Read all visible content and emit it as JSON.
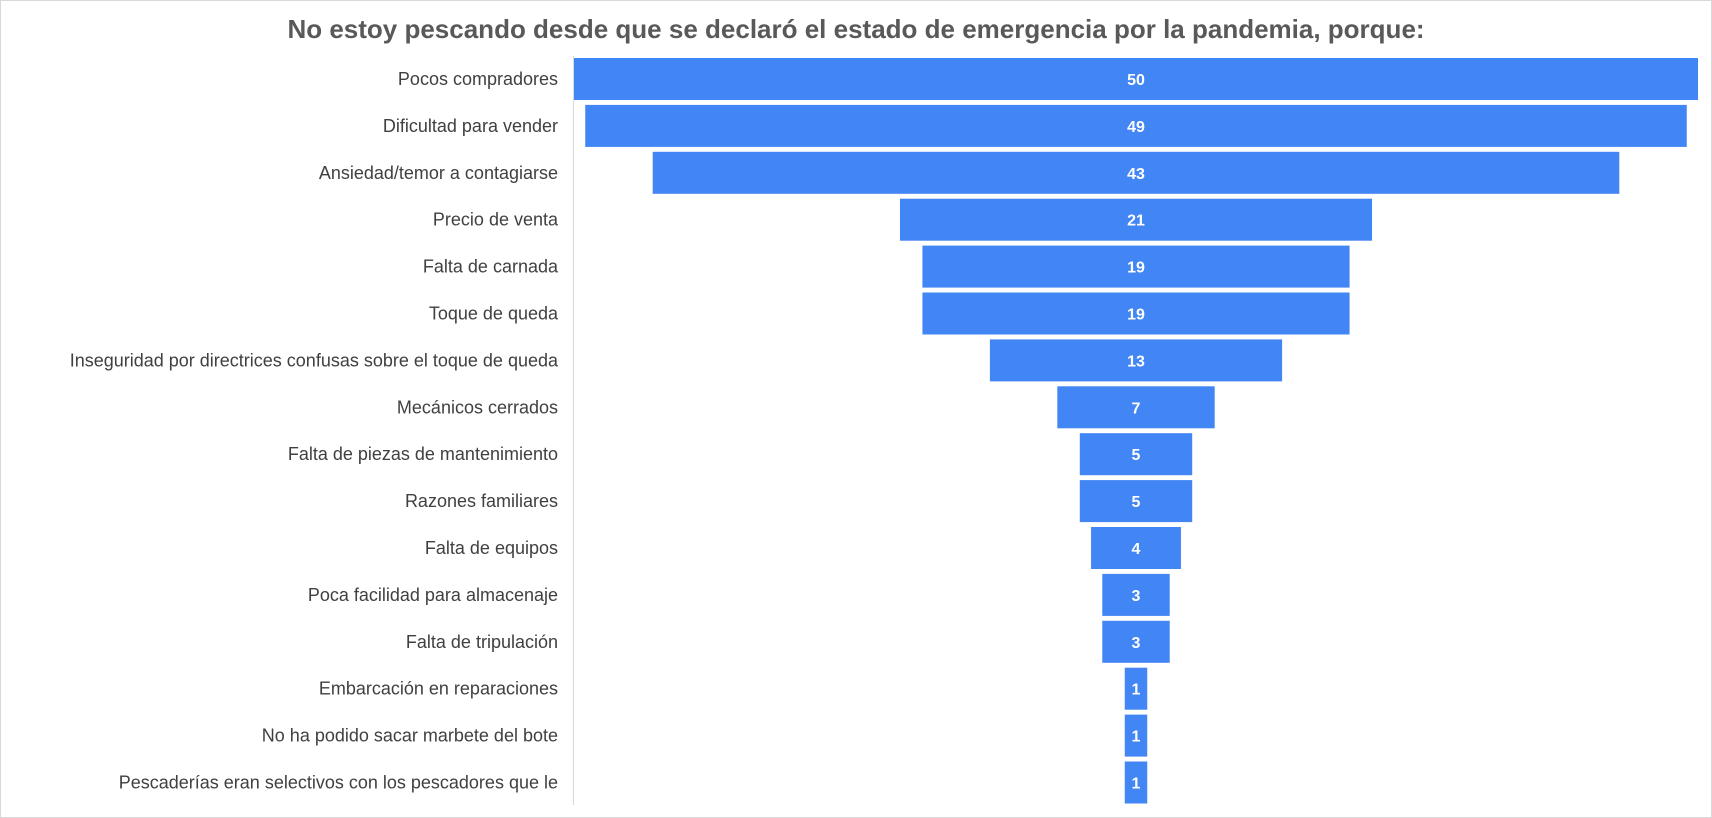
{
  "chart_data": {
    "type": "bar",
    "subtype": "funnel",
    "title": "No estoy pescando desde que se declaró el estado de emergencia por la pandemia, porque:",
    "categories": [
      "Pocos compradores",
      "Dificultad para vender",
      "Ansiedad/temor a contagiarse",
      "Precio de venta",
      "Falta de carnada",
      "Toque de queda",
      "Inseguridad por directrices confusas sobre el toque de queda",
      "Mecánicos cerrados",
      "Falta de piezas de mantenimiento",
      "Razones familiares",
      "Falta de equipos",
      "Poca facilidad para almacenaje",
      "Falta de tripulación",
      "Embarcación en reparaciones",
      "No ha podido sacar marbete del bote",
      "Pescaderías eran selectivos con los pescadores que le"
    ],
    "values": [
      50,
      49,
      43,
      21,
      19,
      19,
      13,
      7,
      5,
      5,
      4,
      3,
      3,
      1,
      1,
      1
    ],
    "bar_color": "#4285f4",
    "label_color": "#ffffff",
    "xlabel": "",
    "ylabel": ""
  }
}
